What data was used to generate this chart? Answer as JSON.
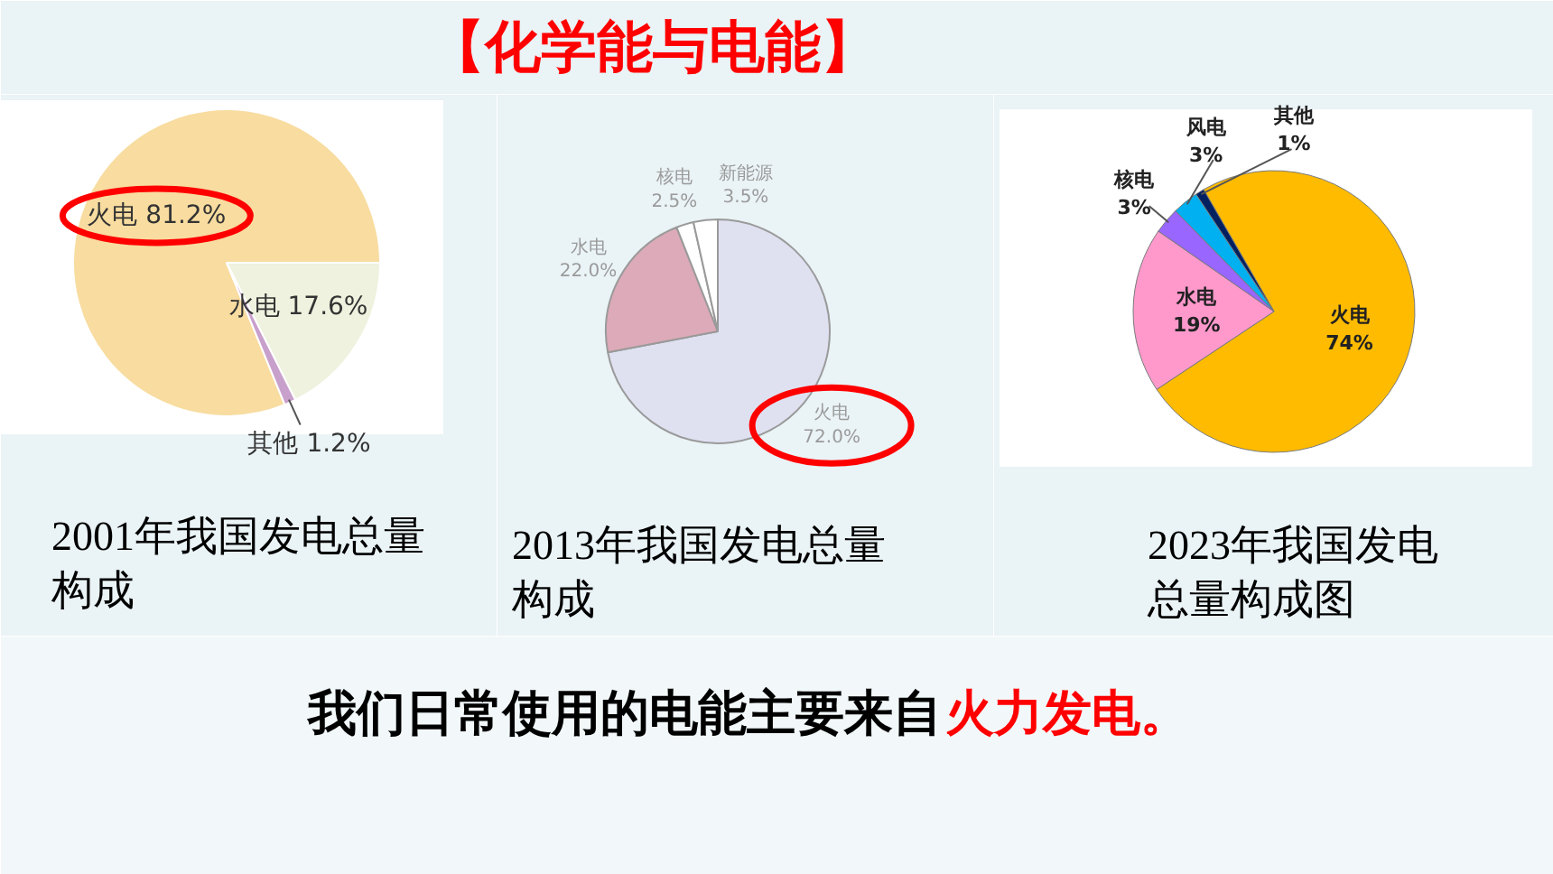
{
  "chart_data": [
    {
      "type": "other",
      "title": "【化学能与电能】"
    },
    {
      "type": "pie",
      "title": "2001年我国发电总量构成",
      "categories": [
        "火电",
        "水电",
        "其他"
      ],
      "values": [
        81.2,
        17.6,
        1.2
      ],
      "value_labels": [
        "81.2%",
        "17.6%",
        "1.2%"
      ],
      "colors": [
        "#f8dca0",
        "#eef2de",
        "#c8a0cc"
      ]
    },
    {
      "type": "pie",
      "title": "2013年我国发电总量构成",
      "categories": [
        "火电",
        "水电",
        "核电",
        "新能源"
      ],
      "values": [
        72.0,
        22.0,
        2.5,
        3.5
      ],
      "value_labels": [
        "72.0%",
        "22.0%",
        "2.5%",
        "3.5%"
      ],
      "colors": [
        "#dfe1f1",
        "#dcaab8",
        "#ffffff",
        "#ffffff"
      ]
    },
    {
      "type": "pie",
      "title": "2023年我国发电总量构成图",
      "categories": [
        "火电",
        "水电",
        "核电",
        "风电",
        "其他"
      ],
      "values": [
        74,
        19,
        3,
        3,
        1
      ],
      "value_labels": [
        "74%",
        "19%",
        "3%",
        "3%",
        "1%"
      ],
      "colors": [
        "#ffbb00",
        "#ff99cc",
        "#9966ff",
        "#00b0f0",
        "#002060"
      ]
    },
    {
      "type": "other",
      "annotations": [
        "我们日常使用的电能主要来自",
        "火力发电。"
      ]
    }
  ]
}
